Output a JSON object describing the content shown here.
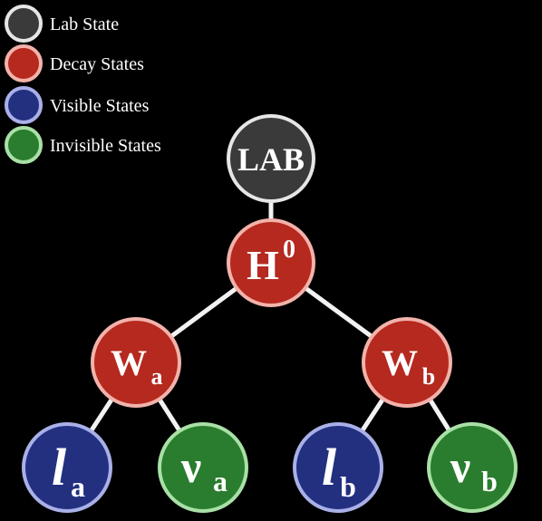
{
  "colors": {
    "background": "#000000",
    "lab_fill": "#3a3a3a",
    "lab_stroke": "#e6e6e6",
    "decay_fill": "#b5291f",
    "decay_stroke": "#f2b2aa",
    "visible_fill": "#23307f",
    "visible_stroke": "#a9b0e8",
    "invisible_fill": "#2a7d2e",
    "invisible_stroke": "#a9e0a6",
    "edge": "#f2f2f2"
  },
  "legend": {
    "lab": "Lab State",
    "decay": "Decay States",
    "visible": "Visible States",
    "invisible": "Invisible States"
  },
  "nodes": {
    "lab": {
      "main": "LAB",
      "sub": "",
      "type": "lab"
    },
    "h0": {
      "main": "H",
      "sub": "0",
      "type": "decay"
    },
    "wa": {
      "main": "W",
      "sub": "a",
      "type": "decay"
    },
    "wb": {
      "main": "W",
      "sub": "b",
      "type": "decay"
    },
    "la": {
      "main": "l",
      "sub": "a",
      "type": "visible"
    },
    "va": {
      "main": "ν",
      "sub": "a",
      "type": "invisible"
    },
    "lb": {
      "main": "l",
      "sub": "b",
      "type": "visible"
    },
    "vb": {
      "main": "ν",
      "sub": "b",
      "type": "invisible"
    }
  },
  "edges": [
    [
      "lab",
      "h0"
    ],
    [
      "h0",
      "wa"
    ],
    [
      "h0",
      "wb"
    ],
    [
      "wa",
      "la"
    ],
    [
      "wa",
      "va"
    ],
    [
      "wb",
      "lb"
    ],
    [
      "wb",
      "vb"
    ]
  ]
}
